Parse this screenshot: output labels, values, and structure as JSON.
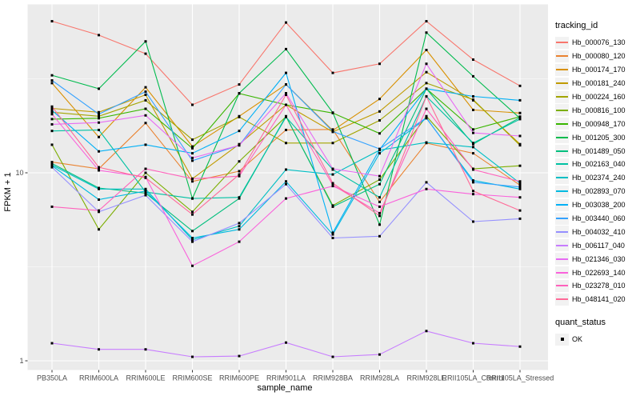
{
  "chart_data": {
    "type": "line",
    "title": "",
    "xlabel": "sample_name",
    "ylabel": "FPKM + 1",
    "y_scale": "log10",
    "y_ticks": [
      {
        "label": "1",
        "value": 1
      },
      {
        "label": "10",
        "value": 10
      }
    ],
    "y_minor_breaks": [
      3.162,
      31.62
    ],
    "ylim": [
      0.9,
      79
    ],
    "grid": true,
    "legend_position": "right",
    "legend_title": "tracking_id",
    "panel_bg": "#EBEBEB",
    "grid_color": "#FFFFFF",
    "tick_text_color": "#4D4D4D",
    "point_color": "#000000",
    "categories": [
      "PB350LA",
      "RRIM600LA",
      "RRIM600LE",
      "RRIM600SE",
      "RRIM600PE",
      "RRIM901LA",
      "RRIM928BA",
      "RRIM928LA",
      "RRIM928LE",
      "RRII105LA_Control",
      "RRII105LA_Stressed"
    ],
    "series": [
      {
        "name": "Hb_000076_130",
        "color": "#F8766D",
        "values": [
          64,
          54,
          43,
          23,
          29.5,
          63,
          34,
          38,
          64,
          40,
          29
        ]
      },
      {
        "name": "Hb_000080_120",
        "color": "#EA8331",
        "values": [
          11.4,
          10.5,
          18.4,
          9,
          10.2,
          16.9,
          17,
          7,
          14.4,
          12.7,
          8.6
        ]
      },
      {
        "name": "Hb_000174_170",
        "color": "#D89000",
        "values": [
          30,
          15.5,
          28.5,
          13.8,
          20,
          29.5,
          16.8,
          24.7,
          45,
          21.6,
          20.8
        ]
      },
      {
        "name": "Hb_000181_240",
        "color": "#C09B00",
        "values": [
          22,
          21,
          26,
          9.3,
          14.2,
          23,
          16.5,
          21.2,
          34.3,
          24.3,
          14.2
        ]
      },
      {
        "name": "Hb_000224_160",
        "color": "#A3A500",
        "values": [
          21,
          20,
          24.3,
          15,
          19.8,
          14.4,
          14.4,
          19,
          30,
          24.5,
          14
        ]
      },
      {
        "name": "Hb_000816_100",
        "color": "#7CAE00",
        "values": [
          14.1,
          5,
          10,
          6.2,
          11.5,
          19.9,
          6.7,
          9.2,
          20,
          10.5,
          10.9
        ]
      },
      {
        "name": "Hb_000948_170",
        "color": "#39B600",
        "values": [
          19.3,
          19.5,
          21.9,
          13.5,
          26.4,
          23,
          20.8,
          16.2,
          28,
          17,
          19.9
        ]
      },
      {
        "name": "Hb_001205_300",
        "color": "#00BB4E",
        "values": [
          33,
          28,
          50,
          7.3,
          26.5,
          45.5,
          20.9,
          5.3,
          55.7,
          32.6,
          19.5
        ]
      },
      {
        "name": "Hb_001489_050",
        "color": "#00BF7D",
        "values": [
          11.2,
          8.3,
          7.8,
          4.9,
          7.3,
          20,
          6.6,
          8.7,
          28,
          14.2,
          19.7
        ]
      },
      {
        "name": "Hb_002163_040",
        "color": "#00C1A3",
        "values": [
          16.7,
          16.9,
          7.9,
          7.3,
          7.4,
          19.8,
          10.4,
          7.4,
          25.5,
          14.4,
          19.3
        ]
      },
      {
        "name": "Hb_002374_240",
        "color": "#00BFC4",
        "values": [
          11,
          8.2,
          8.2,
          4.4,
          5.2,
          10.4,
          9.8,
          13.2,
          14.5,
          13.7,
          8.8
        ]
      },
      {
        "name": "Hb_002893_070",
        "color": "#00BAE0",
        "values": [
          10.9,
          7.2,
          8,
          4.5,
          5,
          9,
          4.7,
          12.7,
          19.5,
          9.1,
          8.2
        ]
      },
      {
        "name": "Hb_003038_200",
        "color": "#00B0F6",
        "values": [
          21.5,
          13,
          14.1,
          12.7,
          16.7,
          34,
          4.8,
          13.3,
          28,
          25.5,
          24.3
        ]
      },
      {
        "name": "Hb_003440_060",
        "color": "#35A2FF",
        "values": [
          31,
          20.5,
          27,
          11.6,
          14,
          29.5,
          16.6,
          13.4,
          19.6,
          8.9,
          8.4
        ]
      },
      {
        "name": "Hb_004032_410",
        "color": "#9590FF",
        "values": [
          10.7,
          6.2,
          7.6,
          4.3,
          5.4,
          8.7,
          4.5,
          4.6,
          8.9,
          5.5,
          5.7
        ]
      },
      {
        "name": "Hb_006117_040",
        "color": "#C77CFF",
        "values": [
          1.24,
          1.15,
          1.15,
          1.05,
          1.06,
          1.25,
          1.05,
          1.08,
          1.44,
          1.24,
          1.19
        ]
      },
      {
        "name": "Hb_021346_030",
        "color": "#E76BF3",
        "values": [
          18.1,
          18.5,
          20.2,
          12,
          14,
          26.5,
          10.5,
          9.6,
          38,
          16.3,
          15.7
        ]
      },
      {
        "name": "Hb_022693_140",
        "color": "#FA62DB",
        "values": [
          20.5,
          10.3,
          9.5,
          3.2,
          4.3,
          7.3,
          8.5,
          6.6,
          8.2,
          7.7,
          7.4
        ]
      },
      {
        "name": "Hb_023278_010",
        "color": "#FF62BC",
        "values": [
          6.6,
          6.3,
          10.5,
          9.3,
          9.6,
          23,
          8.6,
          6.1,
          21.9,
          10.4,
          9
        ]
      },
      {
        "name": "Hb_048141_020",
        "color": "#FF6A98",
        "values": [
          22.5,
          10.7,
          9.4,
          6,
          9.8,
          26,
          8.8,
          5.9,
          25.5,
          8,
          6.3
        ]
      }
    ],
    "quant_status": {
      "title": "quant_status",
      "label": "OK",
      "marker": "black-point"
    }
  }
}
